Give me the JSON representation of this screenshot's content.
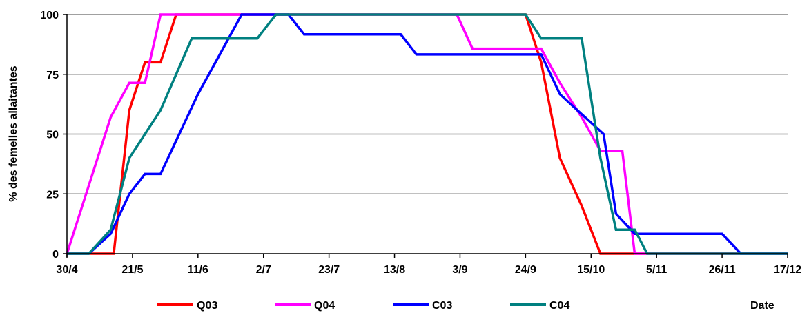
{
  "chart_data": {
    "type": "line",
    "ylabel": "% des femelles allaitantes",
    "xlabel": "Date",
    "ylim": [
      0,
      100
    ],
    "yticks": [
      0,
      25,
      50,
      75,
      100
    ],
    "xlim": [
      0,
      231
    ],
    "xticks": [
      {
        "label": "30/4",
        "day": 0
      },
      {
        "label": "21/5",
        "day": 21
      },
      {
        "label": "11/6",
        "day": 42
      },
      {
        "label": "2/7",
        "day": 63
      },
      {
        "label": "23/7",
        "day": 84
      },
      {
        "label": "13/8",
        "day": 105
      },
      {
        "label": "3/9",
        "day": 126
      },
      {
        "label": "24/9",
        "day": 147
      },
      {
        "label": "15/10",
        "day": 168
      },
      {
        "label": "5/11",
        "day": 189
      },
      {
        "label": "26/11",
        "day": 210
      },
      {
        "label": "17/12",
        "day": 231
      }
    ],
    "grid": "horizontal",
    "legend_position": "bottom",
    "series": [
      {
        "name": "Q03",
        "color": "#ff0000",
        "points": [
          [
            0,
            0
          ],
          [
            14,
            0
          ],
          [
            15,
            0
          ],
          [
            20,
            60
          ],
          [
            25,
            80
          ],
          [
            30,
            80
          ],
          [
            35,
            100
          ],
          [
            147,
            100
          ],
          [
            152,
            80
          ],
          [
            158,
            40
          ],
          [
            165,
            20
          ],
          [
            171,
            0
          ],
          [
            231,
            0
          ]
        ]
      },
      {
        "name": "Q04",
        "color": "#ff00ff",
        "points": [
          [
            0,
            0
          ],
          [
            14,
            57
          ],
          [
            20,
            71.4
          ],
          [
            25,
            71.4
          ],
          [
            30,
            100
          ],
          [
            125,
            100
          ],
          [
            130,
            85.7
          ],
          [
            152,
            85.7
          ],
          [
            158,
            71.4
          ],
          [
            165,
            57
          ],
          [
            171,
            43
          ],
          [
            178,
            43
          ],
          [
            182,
            0
          ],
          [
            231,
            0
          ]
        ]
      },
      {
        "name": "C03",
        "color": "#0000ff",
        "points": [
          [
            0,
            0
          ],
          [
            7,
            0
          ],
          [
            14,
            8.3
          ],
          [
            20,
            25
          ],
          [
            25,
            33.3
          ],
          [
            30,
            33.3
          ],
          [
            42,
            66.7
          ],
          [
            49,
            83.3
          ],
          [
            56,
            100
          ],
          [
            71,
            100
          ],
          [
            76,
            91.7
          ],
          [
            107,
            91.7
          ],
          [
            112,
            83.3
          ],
          [
            152,
            83.3
          ],
          [
            158,
            66.7
          ],
          [
            165,
            58.3
          ],
          [
            172,
            50
          ],
          [
            176,
            16.7
          ],
          [
            182,
            8.3
          ],
          [
            210,
            8.3
          ],
          [
            216,
            0
          ],
          [
            231,
            0
          ]
        ]
      },
      {
        "name": "C04",
        "color": "#008080",
        "points": [
          [
            0,
            0
          ],
          [
            7,
            0
          ],
          [
            14,
            10
          ],
          [
            20,
            40
          ],
          [
            25,
            50
          ],
          [
            30,
            60
          ],
          [
            40,
            90
          ],
          [
            61,
            90
          ],
          [
            67,
            100
          ],
          [
            147,
            100
          ],
          [
            152,
            90
          ],
          [
            165,
            90
          ],
          [
            171,
            40
          ],
          [
            176,
            10
          ],
          [
            182,
            10
          ],
          [
            186,
            0
          ],
          [
            231,
            0
          ]
        ]
      }
    ]
  }
}
